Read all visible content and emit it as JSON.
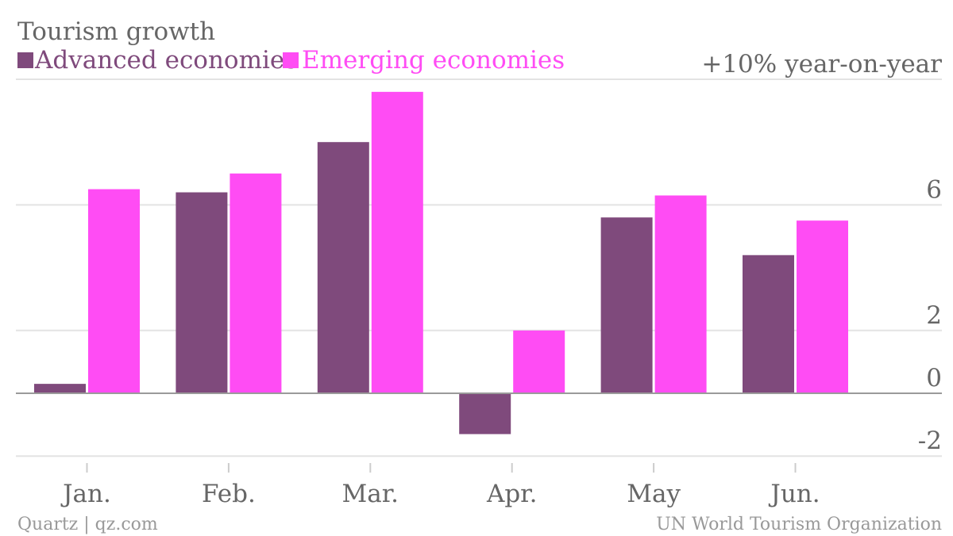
{
  "chart_data": {
    "type": "bar",
    "title": "Tourism growth",
    "unit_label": "+10% year-on-year",
    "categories": [
      "Jan.",
      "Feb.",
      "Mar.",
      "Apr.",
      "May",
      "Jun."
    ],
    "series": [
      {
        "name": "Advanced economies",
        "color": "#7f4a7c",
        "values": [
          0.3,
          6.4,
          8.0,
          -1.3,
          5.6,
          4.4
        ]
      },
      {
        "name": "Emerging economies",
        "color": "#ff4cf4",
        "values": [
          6.5,
          7.0,
          9.6,
          2.0,
          6.3,
          5.5
        ]
      }
    ],
    "y_ticks": [
      "+10% year-on-year",
      "6",
      "2",
      "0",
      "-2"
    ],
    "y_tick_values": [
      10,
      6,
      2,
      0,
      -2
    ],
    "ylim": [
      -2,
      10
    ],
    "grid": true,
    "legend_position": "top-left"
  },
  "footer": {
    "source_left": "Quartz | qz.com",
    "source_right": "UN World Tourism Organization"
  }
}
